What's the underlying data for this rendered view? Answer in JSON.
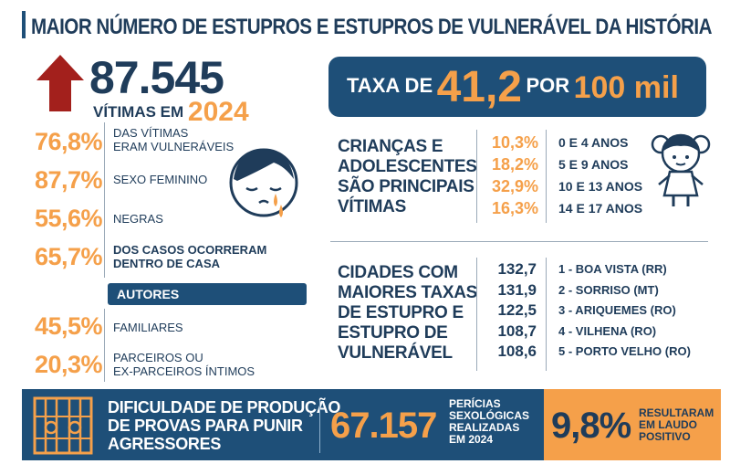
{
  "title": "MAIOR NÚMERO DE ESTUPROS E ESTUPROS DE VULNERÁVEL DA HISTÓRIA",
  "victims": {
    "number": "87.545",
    "label": "VÍTIMAS EM",
    "year": "2024"
  },
  "stats": [
    {
      "value": "76,8%",
      "label_line1": "DAS VÍTIMAS",
      "label_line2": "ERAM VULNERÁVEIS"
    },
    {
      "value": "87,7%",
      "label_line1": "SEXO FEMININO",
      "label_line2": ""
    },
    {
      "value": "55,6%",
      "label_line1": "NEGRAS",
      "label_line2": ""
    },
    {
      "value": "65,7%",
      "label_line1": "DOS CASOS OCORRERAM",
      "label_line2": "DENTRO DE CASA"
    }
  ],
  "authors": {
    "heading": "AUTORES",
    "items": [
      {
        "value": "45,5%",
        "label_line1": "FAMILIARES",
        "label_line2": ""
      },
      {
        "value": "20,3%",
        "label_line1": "PARCEIROS OU",
        "label_line2": "EX-PARCEIROS ÍNTIMOS"
      }
    ]
  },
  "rate": {
    "prefix": "TAXA DE",
    "value": "41,2",
    "per": "POR",
    "base": "100 mil"
  },
  "children": {
    "title_lines": [
      "CRIANÇAS E",
      "ADOLESCENTES",
      "SÃO PRINCIPAIS",
      "VÍTIMAS"
    ],
    "rows": [
      {
        "value": "10,3%",
        "label": "0 E 4 ANOS"
      },
      {
        "value": "18,2%",
        "label": "5 E 9 ANOS"
      },
      {
        "value": "32,9%",
        "label": "10 E 13 ANOS"
      },
      {
        "value": "16,3%",
        "label": "14 E 17 ANOS"
      }
    ]
  },
  "cities": {
    "title_lines": [
      "CIDADES COM",
      "MAIORES TAXAS",
      "DE ESTUPRO E",
      "ESTUPRO DE",
      "VULNERÁVEL"
    ],
    "rows": [
      {
        "value": "132,7",
        "label": "1 - BOA VISTA (RR)"
      },
      {
        "value": "131,9",
        "label": "2 - SORRISO (MT)"
      },
      {
        "value": "122,5",
        "label": "3 - ARIQUEMES (RO)"
      },
      {
        "value": "108,7",
        "label": "4 - VILHENA (RO)"
      },
      {
        "value": "108,6",
        "label": "5 - PORTO VELHO (RO)"
      }
    ]
  },
  "footer": {
    "title_lines": [
      "DIFICULDADE DE PRODUÇÃO",
      "DE PROVAS PARA PUNIR",
      "AGRESSORES"
    ],
    "exams_number": "67.157",
    "exams_label_lines": [
      "PERÍCIAS",
      "SEXOLÓGICAS",
      "REALIZADAS",
      "EM 2024"
    ],
    "report_pct": "9,8%",
    "report_label_lines": [
      "RESULTARAM",
      "EM LAUDO",
      "POSITIVO"
    ]
  },
  "colors": {
    "navy": "#1e4f78",
    "orange": "#f5a04a",
    "red": "#a3201c",
    "text": "#1f3c5a"
  },
  "icons": [
    "up-arrow-icon",
    "crying-woman-icon",
    "girl-doll-icon",
    "jail-bars-icon"
  ]
}
